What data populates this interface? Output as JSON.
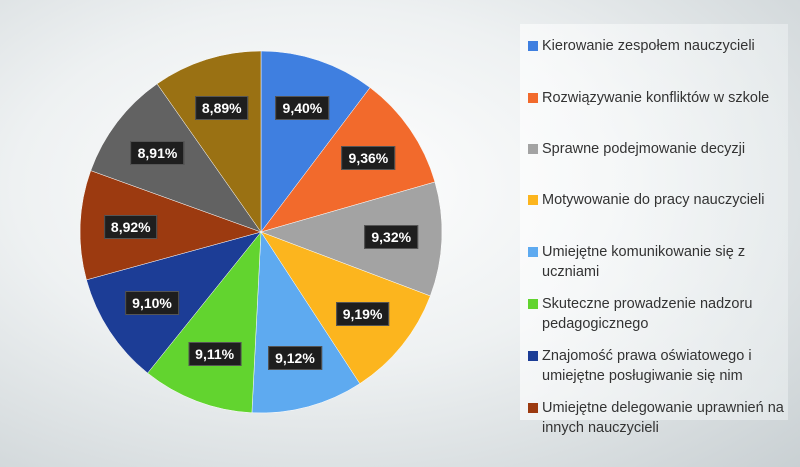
{
  "chart_data": {
    "type": "pie",
    "start": "top",
    "direction": "clockwise",
    "slices": [
      {
        "label": "Kierowanie zespołem nauczycieli",
        "value": 9.4,
        "display": "9,40%",
        "color": "#3f7fe0"
      },
      {
        "label": "Rozwiązywanie konfliktów w szkole",
        "value": 9.36,
        "display": "9,36%",
        "color": "#f26a2c"
      },
      {
        "label": "Sprawne podejmowanie decyzji",
        "value": 9.32,
        "display": "9,32%",
        "color": "#a3a3a3"
      },
      {
        "label": "Motywowanie do pracy nauczycieli",
        "value": 9.19,
        "display": "9,19%",
        "color": "#fcb51e"
      },
      {
        "label": "Umiejętne komunikowanie się z uczniami",
        "value": 9.12,
        "display": "9,12%",
        "color": "#5eaaf0"
      },
      {
        "label": "Skuteczne prowadzenie nadzoru pedagogicznego",
        "value": 9.11,
        "display": "9,11%",
        "color": "#62d42f"
      },
      {
        "label": "Znajomość prawa oświatowego i umiejętne posługiwanie się nim",
        "value": 9.1,
        "display": "9,10%",
        "color": "#1c3d96"
      },
      {
        "label": "Umiejętne delegowanie uprawnień na innych nauczycieli",
        "value": 8.92,
        "display": "8,92%",
        "color": "#9c3a10"
      },
      {
        "value": 8.91,
        "display": "8,91%",
        "color": "#626262"
      },
      {
        "value": 8.89,
        "display": "8,89%",
        "color": "#9a7113"
      }
    ],
    "legend": {
      "placement": "right"
    }
  }
}
